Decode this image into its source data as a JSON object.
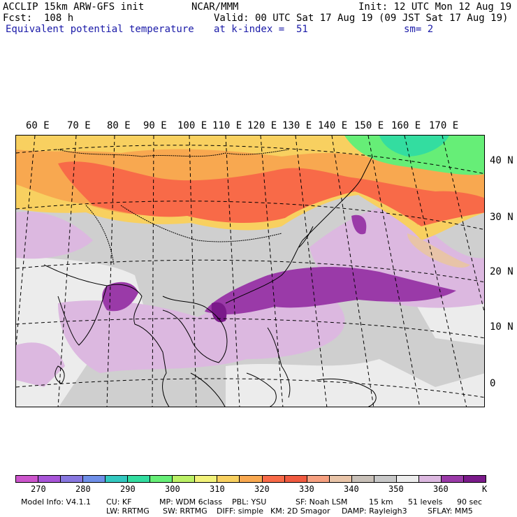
{
  "header": {
    "model": "ACCLIP 15km ARW-GFS init",
    "org": "NCAR/MMM",
    "init": "Init: 12 UTC Mon 12 Aug 19",
    "fcst": "Fcst:  108 h",
    "valid": "Valid: 00 UTC Sat 17 Aug 19 (09 JST Sat 17 Aug 19)",
    "field": "Equivalent potential temperature",
    "level": "at k-index =  51",
    "smooth": "sm= 2"
  },
  "lon_labels": [
    "60 E",
    "70 E",
    "80 E",
    "90 E",
    "100 E",
    "110 E",
    "120 E",
    "130 E",
    "140 E",
    "150 E",
    "160 E",
    "170 E"
  ],
  "lat_labels": [
    "40 N",
    "30 N",
    "20 N",
    "10 N",
    "0"
  ],
  "colorbar": {
    "colors": [
      "#cc55cc",
      "#a855d8",
      "#8877e0",
      "#6f8fe8",
      "#33c8c0",
      "#33dda0",
      "#66ee77",
      "#bbf066",
      "#f2f27a",
      "#f8d060",
      "#f8a850",
      "#f86a48",
      "#f05a40",
      "#f6a080",
      "#e8c4a8",
      "#c8c0b8",
      "#c8c8c8",
      "#ececec",
      "#dcb8e0",
      "#9a3aa8",
      "#7a1a8a"
    ],
    "ticks": [
      "270",
      "280",
      "290",
      "300",
      "310",
      "320",
      "330",
      "340",
      "350",
      "360"
    ],
    "unit": "K"
  },
  "footer": {
    "line1": [
      "Model Info: V4.1.1",
      "CU: KF",
      "MP: WDM 6class",
      "PBL: YSU",
      "SF: Noah LSM",
      "15 km",
      "51 levels",
      "90 sec"
    ],
    "line2": [
      "LW: RRTMG",
      "SW: RRTMG",
      "DIFF: simple",
      "KM: 2D Smagor",
      "DAMP: Rayleigh3",
      "SFLAY: MM5"
    ]
  }
}
